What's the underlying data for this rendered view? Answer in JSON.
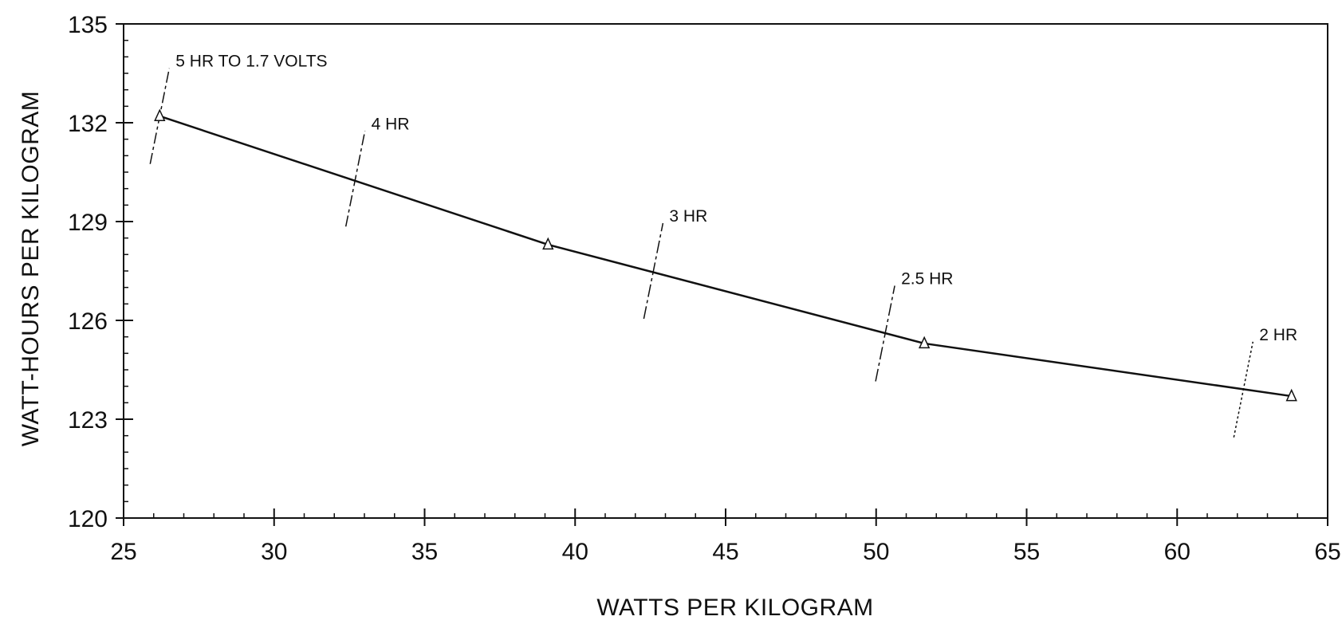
{
  "chart_data": {
    "type": "line",
    "title": "",
    "xlabel": "WATTS PER KILOGRAM",
    "ylabel": "WATT-HOURS PER KILOGRAM",
    "xlim": [
      25,
      65
    ],
    "ylim": [
      120,
      135
    ],
    "x_ticks": [
      25,
      30,
      35,
      40,
      45,
      50,
      55,
      60,
      65
    ],
    "y_ticks": [
      120,
      123,
      126,
      129,
      132,
      135
    ],
    "x_tick_labels": [
      "25",
      "30",
      "35",
      "40",
      "45",
      "50",
      "55",
      "60",
      "65"
    ],
    "y_tick_labels": [
      "120",
      "123",
      "126",
      "129",
      "132",
      "135"
    ],
    "grid": false,
    "legend": "none",
    "series": [
      {
        "marker": "triangle",
        "line_color": "#111111",
        "x": [
          26.2,
          39.1,
          51.6,
          63.8
        ],
        "y": [
          132.2,
          128.3,
          125.3,
          123.7
        ]
      }
    ],
    "annotations": [
      {
        "text": "5 HR TO 1.7 VOLTS",
        "x": 26.2,
        "y": 132.2
      },
      {
        "text": "4 HR",
        "x": 32.7,
        "y": 130.3
      },
      {
        "text": "3 HR",
        "x": 42.6,
        "y": 127.5
      },
      {
        "text": "2.5 HR",
        "x": 50.3,
        "y": 125.6
      },
      {
        "text": "2 HR",
        "x": 62.2,
        "y": 123.9
      }
    ]
  }
}
